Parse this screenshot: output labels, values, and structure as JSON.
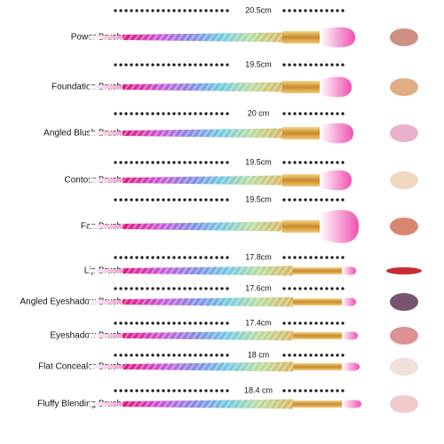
{
  "brushes": [
    {
      "name": "Power Brush",
      "length": "20.5cm"
    },
    {
      "name": "Foundation Brush",
      "length": "19.5cm"
    },
    {
      "name": "Angled Blush Brush",
      "length": "20 cm"
    },
    {
      "name": "Contour Brush",
      "length": "19.5cm"
    },
    {
      "name": "Fan Brush",
      "length": "19.5cm"
    },
    {
      "name": "Lip Brush",
      "length": "17.8cm"
    },
    {
      "name": "Angled Eyeshadow Brush",
      "length": "17.6cm"
    },
    {
      "name": "Eyeshadow Brush",
      "length": "17.4cm"
    },
    {
      "name": "Flat Concealer Brush",
      "length": "18 cm"
    },
    {
      "name": "Fluffy Blending Brush",
      "length": "18.4 cm"
    }
  ]
}
